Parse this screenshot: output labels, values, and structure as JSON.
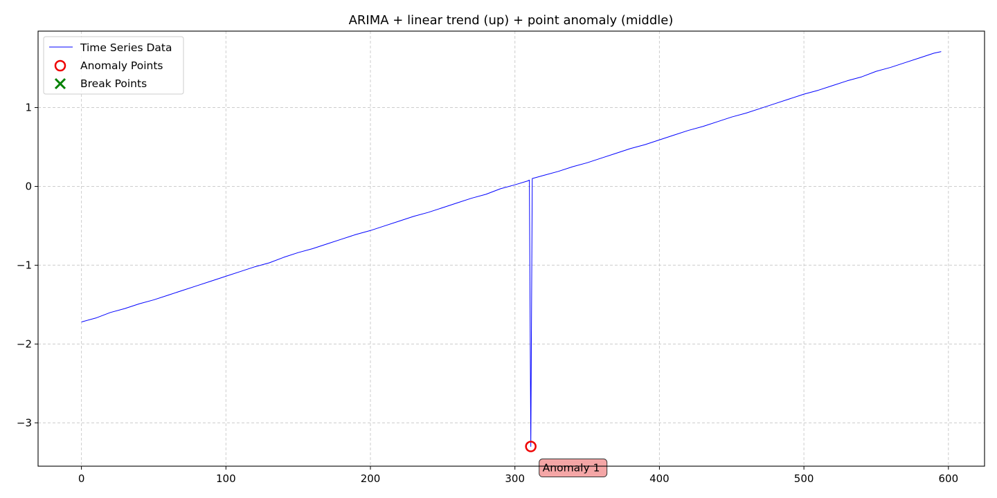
{
  "chart_data": {
    "type": "line",
    "title": "ARIMA + linear trend (up) + point anomaly (middle)",
    "xlabel": "",
    "ylabel": "",
    "xlim": [
      -30,
      625
    ],
    "ylim": [
      -3.55,
      1.97
    ],
    "xticks": [
      0,
      100,
      200,
      300,
      400,
      500,
      600
    ],
    "yticks": [
      -3,
      -2,
      -1,
      0,
      1
    ],
    "grid": true,
    "legend_position": "top-left",
    "legend": [
      "Time Series Data",
      "Anomaly Points",
      "Break Points"
    ],
    "colors": {
      "series": "#0000ff",
      "anomaly": "#ee0000",
      "break": "#008000",
      "grid": "#cccccc",
      "annotation_fill": "#f4a6a6"
    },
    "series": [
      {
        "name": "Time Series Data",
        "trend": {
          "x_start": 0,
          "x_end": 595,
          "y_start": -1.72,
          "y_end": 1.71
        },
        "x": [
          0,
          10,
          20,
          30,
          40,
          50,
          60,
          70,
          80,
          90,
          100,
          110,
          120,
          130,
          140,
          150,
          160,
          170,
          180,
          190,
          200,
          210,
          220,
          230,
          240,
          250,
          260,
          270,
          280,
          290,
          300,
          309,
          310,
          311,
          312,
          320,
          330,
          340,
          350,
          360,
          370,
          380,
          390,
          400,
          410,
          420,
          430,
          440,
          450,
          460,
          470,
          480,
          490,
          500,
          510,
          520,
          530,
          540,
          550,
          560,
          570,
          580,
          590,
          595
        ],
        "y": [
          -1.72,
          -1.67,
          -1.6,
          -1.55,
          -1.49,
          -1.44,
          -1.38,
          -1.32,
          -1.26,
          -1.2,
          -1.14,
          -1.08,
          -1.02,
          -0.97,
          -0.9,
          -0.84,
          -0.79,
          -0.73,
          -0.67,
          -0.61,
          -0.56,
          -0.5,
          -0.44,
          -0.38,
          -0.33,
          -0.27,
          -0.21,
          -0.15,
          -0.1,
          -0.03,
          0.02,
          0.07,
          0.08,
          -3.3,
          0.1,
          0.14,
          0.19,
          0.25,
          0.3,
          0.36,
          0.42,
          0.48,
          0.53,
          0.59,
          0.65,
          0.71,
          0.76,
          0.82,
          0.88,
          0.93,
          0.99,
          1.05,
          1.11,
          1.17,
          1.22,
          1.28,
          1.34,
          1.39,
          1.46,
          1.51,
          1.57,
          1.63,
          1.69,
          1.71
        ]
      }
    ],
    "anomaly_points": [
      {
        "x": 311,
        "y": -3.3,
        "label": "Anomaly 1"
      }
    ],
    "break_points": []
  }
}
